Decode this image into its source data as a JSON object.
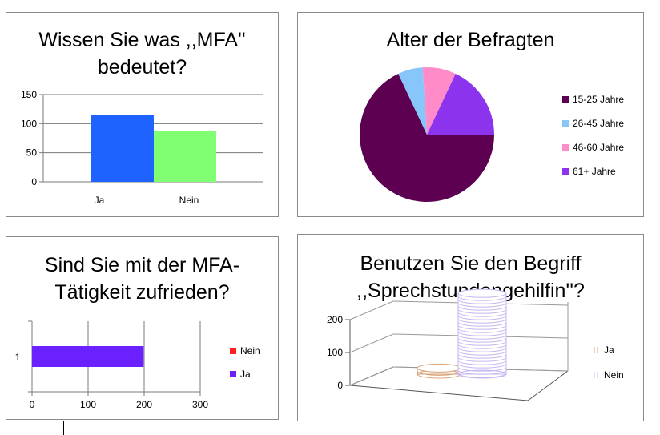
{
  "chart_data": [
    {
      "type": "bar",
      "title_lines": [
        "Wissen Sie was ,,MFA''",
        "bedeutet?"
      ],
      "categories": [
        "Ja",
        "Nein"
      ],
      "values": [
        115,
        87
      ],
      "ylim": [
        0,
        150
      ],
      "yticks": [
        "0",
        "50",
        "100",
        "150"
      ],
      "colors": [
        "#1f63ff",
        "#80ff73"
      ],
      "grid": true,
      "legend": "none"
    },
    {
      "type": "pie",
      "title": "Alter der Befragten",
      "labels": [
        "15-25 Jahre",
        "26-45 Jahre",
        "46-60 Jahre",
        "61+ Jahre"
      ],
      "values": [
        68,
        6,
        8,
        18
      ],
      "colors": [
        "#5e0052",
        "#87c6fb",
        "#ff8cc8",
        "#8c33ee"
      ],
      "legend": "right"
    },
    {
      "type": "bar",
      "orientation": "horizontal",
      "stacked": true,
      "title_lines": [
        "Sind Sie mit der MFA-",
        "Tätigkeit zufrieden?"
      ],
      "categories": [
        "1"
      ],
      "series": [
        {
          "name": "Ja",
          "values": [
            199
          ],
          "color": "#6a20ff"
        },
        {
          "name": "Nein",
          "values": [
            0
          ],
          "color": "#ff2020"
        }
      ],
      "xlim": [
        0,
        300
      ],
      "xticks": [
        "0",
        "100",
        "200",
        "300"
      ],
      "grid": true,
      "legend": "right"
    },
    {
      "type": "bar",
      "style": "3d-cylinder",
      "title_lines": [
        "Benutzen Sie den Begriff",
        ",,Sprechstundengehilfin''?"
      ],
      "series": [
        {
          "name": "Ja",
          "values": [
            14
          ],
          "color": "#d9a27a"
        },
        {
          "name": "Nein",
          "values": [
            185
          ],
          "color": "#c8b6f2"
        }
      ],
      "ylim": [
        0,
        200
      ],
      "yticks": [
        "0",
        "100",
        "200"
      ],
      "legend": "right"
    }
  ]
}
